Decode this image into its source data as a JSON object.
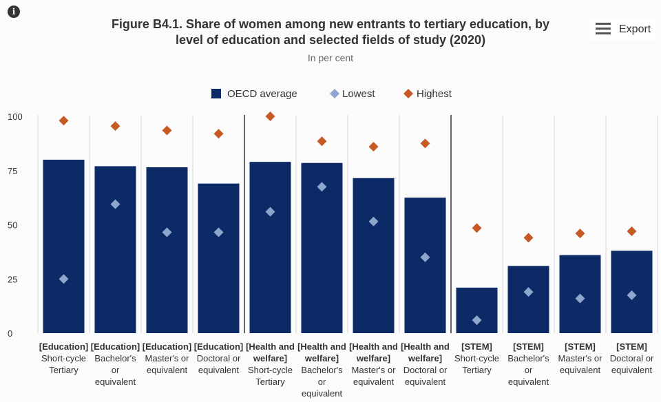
{
  "header": {
    "title_line1": "Figure B4.1. Share of women among new entrants to tertiary education, by",
    "title_line2": "level of education and selected fields of study (2020)",
    "subtitle": "In per cent",
    "export_label": "Export"
  },
  "chart_data": {
    "type": "bar",
    "title": "Figure B4.1. Share of women among new entrants to tertiary education, by level of education and selected fields of study (2020)",
    "subtitle": "In per cent",
    "categories": [
      [
        "[Education]",
        "Short-cycle",
        "Tertiary"
      ],
      [
        "[Education]",
        "Bachelor's",
        "or",
        "equivalent"
      ],
      [
        "[Education]",
        "Master's or",
        "equivalent"
      ],
      [
        "[Education]",
        "Doctoral or",
        "equivalent"
      ],
      [
        "[Health and",
        "welfare]",
        "Short-cycle",
        "Tertiary"
      ],
      [
        "[Health and",
        "welfare]",
        "Bachelor's",
        "or",
        "equivalent"
      ],
      [
        "[Health and",
        "welfare]",
        "Master's or",
        "equivalent"
      ],
      [
        "[Health and",
        "welfare]",
        "Doctoral or",
        "equivalent"
      ],
      [
        "[STEM]",
        "Short-cycle",
        "Tertiary"
      ],
      [
        "[STEM]",
        "Bachelor's",
        "or",
        "equivalent"
      ],
      [
        "[STEM]",
        "Master's or",
        "equivalent"
      ],
      [
        "[STEM]",
        "Doctoral or",
        "equivalent"
      ]
    ],
    "series": [
      {
        "name": "OECD average",
        "marker": "bar",
        "color": "#0b2a66",
        "values": [
          80,
          77,
          76.5,
          69,
          79,
          78.5,
          71.5,
          62.5,
          21,
          31,
          36,
          38
        ]
      },
      {
        "name": "Lowest",
        "marker": "diamond",
        "color": "#8fa6cc",
        "values": [
          25,
          59.5,
          46.5,
          46.5,
          56,
          67.5,
          51.5,
          35,
          6,
          19,
          16,
          17.5
        ]
      },
      {
        "name": "Highest",
        "marker": "diamond",
        "color": "#c65a24",
        "values": [
          98,
          95.5,
          93.5,
          92,
          100,
          88.5,
          86,
          87.5,
          48.5,
          44,
          46,
          47
        ]
      }
    ],
    "y_ticks": [
      0,
      25,
      50,
      75,
      100
    ],
    "ylim": [
      0,
      100
    ],
    "group_separators_after": [
      3,
      7
    ],
    "legend_position": "top-center",
    "grid": false
  }
}
